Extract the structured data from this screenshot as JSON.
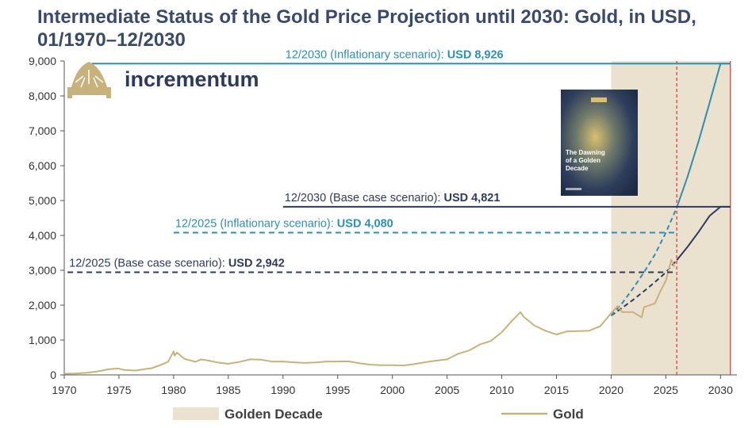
{
  "title": "Intermediate Status of the Gold Price Projection until 2030: Gold, in USD, 01/1970–12/2030",
  "logo": {
    "text": "incrementum",
    "icon": "tree-icon"
  },
  "book_cover": {
    "title": "The Dawning of a Golden Decade"
  },
  "colors": {
    "gold": "#c8b27c",
    "golden_decade": "#ebe1cf",
    "base_case": "#2e3a5f",
    "inflationary": "#2e8fb3",
    "marker": "#e03030"
  },
  "chart_data": {
    "type": "line",
    "xlim": [
      1970,
      2031.5
    ],
    "ylim": [
      0,
      9000
    ],
    "x_ticks": [
      "1970",
      "1975",
      "1980",
      "1985",
      "1990",
      "1995",
      "2000",
      "2005",
      "2010",
      "2015",
      "2020",
      "2025",
      "2030"
    ],
    "y_ticks": [
      "0",
      "1,000",
      "2,000",
      "3,000",
      "4,000",
      "5,000",
      "6,000",
      "7,000",
      "8,000",
      "9,000"
    ],
    "golden_decade": [
      2020,
      2030.9
    ],
    "markers": [
      2026,
      2030.9
    ],
    "legend": {
      "golden_decade": "Golden Decade",
      "gold": "Gold"
    },
    "series": [
      {
        "name": "Gold",
        "x": [
          1970,
          1971,
          1972,
          1973,
          1974,
          1974.9,
          1975.5,
          1976.5,
          1977,
          1978,
          1979,
          1979.5,
          1980.0,
          1980.1,
          1980.3,
          1980.6,
          1981,
          1982,
          1982.5,
          1983,
          1984,
          1985,
          1986,
          1987,
          1988,
          1989,
          1990,
          1991,
          1992,
          1993,
          1994,
          1995,
          1996,
          1997,
          1998,
          1999,
          2000,
          2001,
          2002,
          2003,
          2004,
          2005,
          2006,
          2007,
          2008,
          2009,
          2010,
          2011,
          2011.7,
          2012,
          2013,
          2014,
          2015,
          2016,
          2017,
          2018,
          2019,
          2020,
          2020.6,
          2021,
          2022,
          2022.8,
          2023,
          2024,
          2024.5,
          2025,
          2025.5,
          2025.8
        ],
        "values": [
          35,
          42,
          58,
          97,
          160,
          185,
          140,
          125,
          148,
          193,
          306,
          380,
          675,
          550,
          640,
          560,
          460,
          375,
          440,
          420,
          360,
          318,
          370,
          446,
          437,
          381,
          383,
          362,
          344,
          360,
          384,
          384,
          388,
          331,
          294,
          279,
          279,
          271,
          310,
          363,
          410,
          445,
          604,
          697,
          872,
          972,
          1225,
          1572,
          1800,
          1669,
          1411,
          1266,
          1160,
          1251,
          1257,
          1268,
          1393,
          1770,
          1970,
          1800,
          1800,
          1650,
          1940,
          2050,
          2400,
          2700,
          3300,
          3100
        ]
      },
      {
        "name": "Base case scenario",
        "x": [
          2020,
          2021,
          2022,
          2023,
          2024,
          2025,
          2026,
          2027,
          2028,
          2029,
          2030,
          2030.9
        ],
        "values": [
          1700,
          1920,
          2150,
          2400,
          2660,
          2942,
          3290,
          3680,
          4100,
          4560,
          4821,
          4821
        ]
      },
      {
        "name": "Inflationary scenario",
        "x": [
          2020,
          2021,
          2022,
          2023,
          2024,
          2025,
          2026,
          2027,
          2028,
          2029,
          2030,
          2030.9
        ],
        "values": [
          1700,
          2050,
          2480,
          2940,
          3450,
          4080,
          4800,
          5700,
          6700,
          7800,
          8926,
          8926
        ]
      }
    ],
    "annotations": [
      {
        "label": "12/2030 (Inflationary scenario): ",
        "value": "USD 8,926",
        "y": 8926,
        "x_from": 1972.5,
        "x_to": 2030.9,
        "style": "solid",
        "color": "#2e8fb3",
        "text_x": 1990.0
      },
      {
        "label": "12/2030 (Base case scenario): ",
        "value": "USD 4,821",
        "y": 4821,
        "x_from": 1990.0,
        "x_to": 2030.9,
        "style": "solid",
        "color": "#2e3a5f",
        "text_x": 1990.0
      },
      {
        "label": "12/2025 (Inflationary scenario): ",
        "value": "USD 4,080",
        "y": 4080,
        "x_from": 1980.0,
        "x_to": 2026,
        "style": "dashed",
        "color": "#2e8fb3",
        "text_x": 1980.0
      },
      {
        "label": "12/2025 (Base case scenario): ",
        "value": "USD 2,942",
        "y": 2942,
        "x_from": 1970.3,
        "x_to": 2026,
        "style": "dashed",
        "color": "#2e3a5f",
        "text_x": 1970.3
      }
    ]
  }
}
